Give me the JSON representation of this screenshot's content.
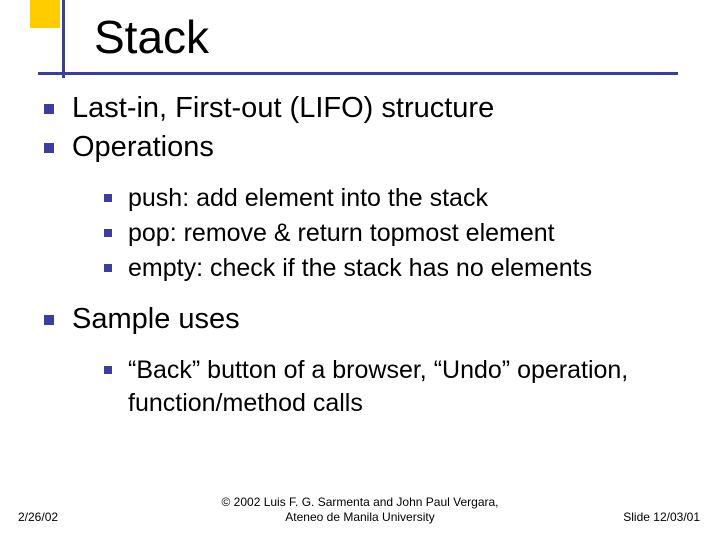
{
  "colors": {
    "corner": "#ffcc00",
    "line": "#3b3e9e",
    "bullet": "#3b3e9e"
  },
  "title": "Stack",
  "bullets": {
    "l1": [
      "Last-in, First-out (LIFO) structure",
      "Operations"
    ],
    "l2a": [
      "push: add element into the stack",
      "pop: remove & return topmost element",
      "empty: check if the stack has no elements"
    ],
    "l1b": [
      "Sample uses"
    ],
    "l2b": [
      "“Back” button of a browser, “Undo” operation, function/method calls"
    ]
  },
  "footer": {
    "left": "2/26/02",
    "center_line1": "© 2002 Luis F. G. Sarmenta and John Paul Vergara,",
    "center_line2": "Ateneo de Manila University",
    "right": "Slide 12/03/01"
  }
}
